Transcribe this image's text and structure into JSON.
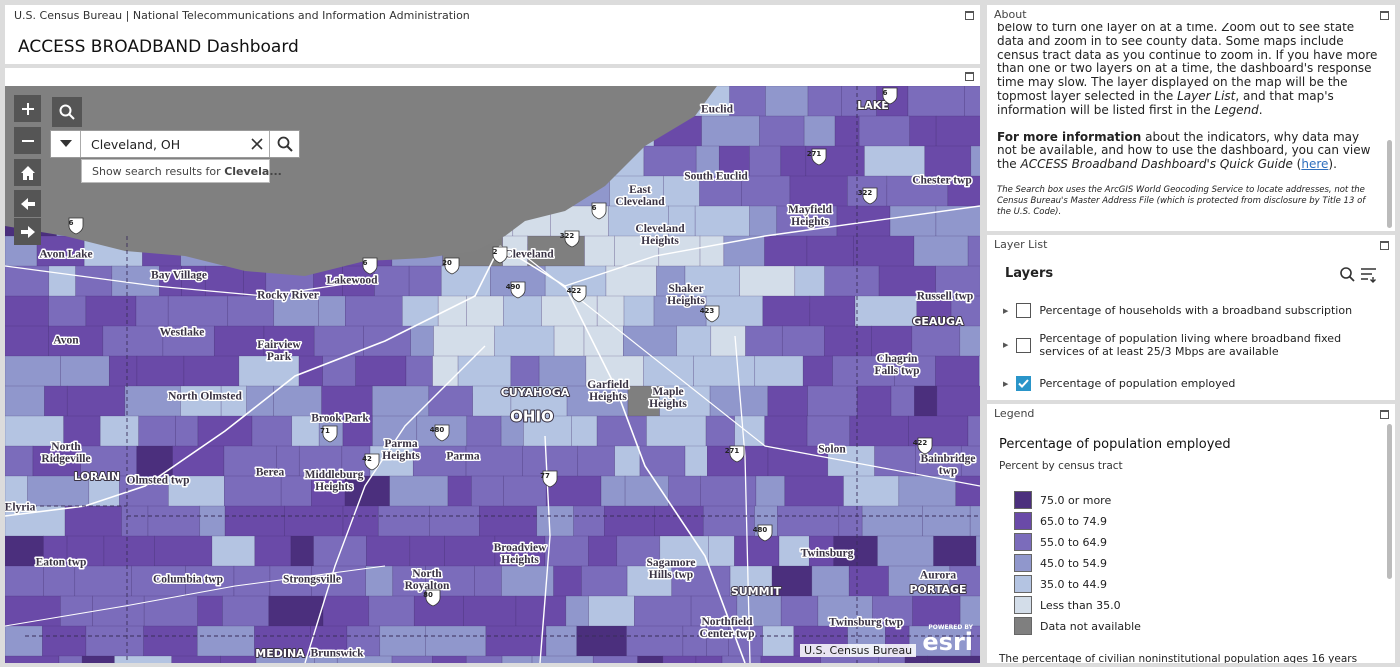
{
  "header": {
    "agency": "U.S. Census Bureau | National Telecommunications and Information Administration",
    "title": "ACCESS BROADBAND Dashboard"
  },
  "map": {
    "search": {
      "value": "Cleveland, OH",
      "suggestion_prefix": "Show search results for ",
      "suggestion_bold": "Clevela..."
    },
    "place_labels": [
      "Euclid",
      "LAKE",
      "South Euclid",
      "East Cleveland",
      "Chester twp",
      "Mayfield Heights",
      "Cleveland Heights",
      "Avon Lake",
      "Bay Village",
      "Lakewood",
      "Cleveland",
      "Rocky River",
      "Shaker Heights",
      "Russell twp",
      "GEAUGA",
      "Westlake",
      "Fairview Park",
      "Avon",
      "Chagrin Falls twp",
      "CUYAHOGA",
      "Garfield Heights",
      "Maple Heights",
      "North Olmsted",
      "OHIO",
      "Brook Park",
      "North Ridgeville",
      "Parma Heights",
      "Parma",
      "Solon",
      "Bainbridge twp",
      "LORAIN",
      "Olmsted twp",
      "Berea",
      "Middleburg Heights",
      "Elyria",
      "Broadview Heights",
      "Twinsburg",
      "Eaton twp",
      "Columbia twp",
      "Strongsville",
      "North Royalton",
      "Sagamore Hills twp",
      "Aurora",
      "PORTAGE",
      "SUMMIT",
      "Northfield Center twp",
      "Twinsburg twp",
      "MEDINA",
      "Brunswick"
    ],
    "route_shields": [
      "6",
      "6",
      "6",
      "6",
      "20",
      "490",
      "322",
      "422",
      "271",
      "322",
      "423",
      "480",
      "71",
      "42",
      "77",
      "271",
      "480",
      "422",
      "80",
      "2"
    ],
    "attribution": "U.S. Census Bureau",
    "esri_powered": "POWERED BY",
    "esri": "esri"
  },
  "about": {
    "title": "About",
    "paragraphs": [
      [
        {
          "text": "below to turn one layer on at a time. Zoom out to see state data and zoom in to see county data. Some maps include census tract data as you continue to zoom in. If you have more than one or two layers on at a time, the dashboard's response time may slow. The layer displayed on the map will be the topmost layer selected in the "
        },
        {
          "text": "Layer List",
          "style": "italic"
        },
        {
          "text": ", and that map's information will be listed first in the "
        },
        {
          "text": "Legend",
          "style": "italic"
        },
        {
          "text": "."
        }
      ],
      [
        {
          "text": "For more information",
          "style": "bold"
        },
        {
          "text": " about the indicators, why data may not be available, and how to use the dashboard, you can view the "
        },
        {
          "text": "ACCESS Broadband Dashboard's Quick Guide",
          "style": "italic"
        },
        {
          "text": " ("
        },
        {
          "text": "here",
          "style": "link"
        },
        {
          "text": ")."
        }
      ],
      [
        {
          "text": "The Search box uses the ArcGIS World Geocoding Service to locate addresses, not the Census Bureau's Master Address File (which is protected from disclosure by Title 13 of the U.S. Code).",
          "style": "note"
        }
      ]
    ]
  },
  "layer_list": {
    "title": "Layer List",
    "heading": "Layers",
    "layers": [
      {
        "label": "Percentage of households with a broadband subscription",
        "checked": false
      },
      {
        "label": "Percentage of population living where broadband fixed services of at least 25/3 Mbps are available",
        "checked": false
      },
      {
        "label": "Percentage of population employed",
        "checked": true
      }
    ]
  },
  "legend": {
    "title": "Legend",
    "layer": "Percentage of population employed",
    "subtitle": "Percent by census tract",
    "classes": [
      {
        "label": "75.0 or more",
        "color": "#4b2f7d"
      },
      {
        "label": "65.0 to 74.9",
        "color": "#6a4aa8"
      },
      {
        "label": "55.0 to 64.9",
        "color": "#7b6cbb"
      },
      {
        "label": "45.0 to 54.9",
        "color": "#9097cc"
      },
      {
        "label": "35.0 to 44.9",
        "color": "#b4c4e2"
      },
      {
        "label": "Less than 35.0",
        "color": "#d3dde9"
      },
      {
        "label": "Data not available",
        "color": "#7f7f7f"
      }
    ],
    "footer": "The percentage of civilian noninstitutional population ages 16 years"
  }
}
